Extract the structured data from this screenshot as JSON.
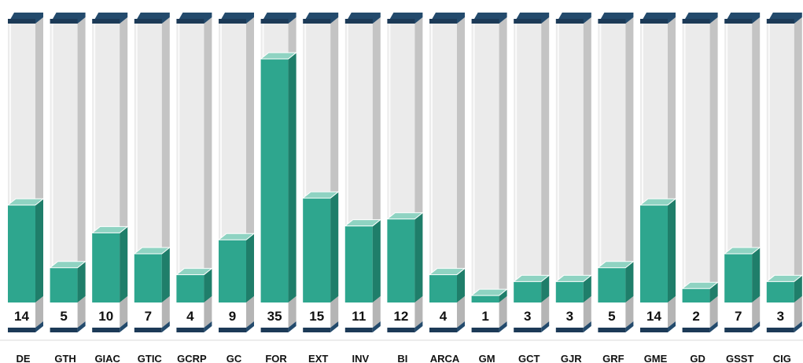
{
  "chart_data": {
    "type": "bar",
    "categories": [
      "DE",
      "GTH",
      "GIAC",
      "GTIC",
      "GCRP",
      "GC",
      "FOR",
      "EXT",
      "INV",
      "BI",
      "ARCA",
      "GM",
      "GCT",
      "GJR",
      "GRF",
      "GME",
      "GD",
      "GSST",
      "CIG"
    ],
    "values": [
      14,
      5,
      10,
      7,
      4,
      9,
      35,
      15,
      11,
      12,
      4,
      1,
      3,
      3,
      5,
      14,
      2,
      7,
      3
    ],
    "ylim": [
      0,
      40
    ],
    "grid": false,
    "legend": "none",
    "colors": {
      "fill": "#2ea68e",
      "fill_side": "#1f7e6a",
      "fill_top": "#8fd3c2",
      "tube_front": "#ebebeb",
      "tube_side": "#c4c4c4",
      "cap": "#1c3a57",
      "cap_top": "#234a6c"
    }
  }
}
